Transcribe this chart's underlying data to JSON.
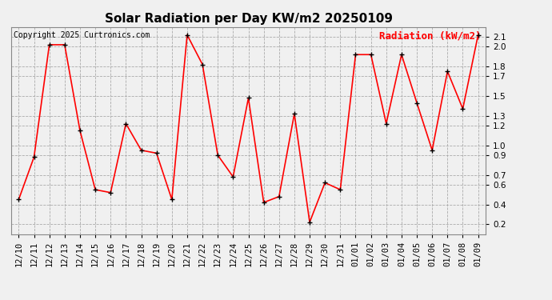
{
  "title": "Solar Radiation per Day KW/m2 20250109",
  "copyright": "Copyright 2025 Curtronics.com",
  "legend_label": "Radiation (kW/m2)",
  "dates": [
    "12/10",
    "12/11",
    "12/12",
    "12/13",
    "12/14",
    "12/15",
    "12/16",
    "12/17",
    "12/18",
    "12/19",
    "12/20",
    "12/21",
    "12/22",
    "12/23",
    "12/24",
    "12/25",
    "12/26",
    "12/27",
    "12/28",
    "12/29",
    "12/30",
    "12/31",
    "01/01",
    "01/02",
    "01/03",
    "01/04",
    "01/05",
    "01/06",
    "01/07",
    "01/08",
    "01/09"
  ],
  "values": [
    0.45,
    0.88,
    2.02,
    2.02,
    1.15,
    0.55,
    0.52,
    1.22,
    0.95,
    0.92,
    0.45,
    2.12,
    1.82,
    0.9,
    0.68,
    1.48,
    0.42,
    0.48,
    1.32,
    0.22,
    0.62,
    0.55,
    1.92,
    1.92,
    1.22,
    1.92,
    1.43,
    0.95,
    1.75,
    1.37,
    2.12
  ],
  "line_color": "red",
  "marker": "+",
  "marker_color": "black",
  "marker_size": 5,
  "line_width": 1.2,
  "grid_color": "#aaaaaa",
  "grid_style": "--",
  "background_color": "#f0f0f0",
  "title_fontsize": 11,
  "copyright_fontsize": 7,
  "legend_fontsize": 9,
  "tick_fontsize": 7.5,
  "ylim": [
    0.1,
    2.2
  ],
  "yticks": [
    0.2,
    0.4,
    0.6,
    0.7,
    0.9,
    1.0,
    1.2,
    1.3,
    1.5,
    1.7,
    1.8,
    2.0,
    2.1
  ]
}
